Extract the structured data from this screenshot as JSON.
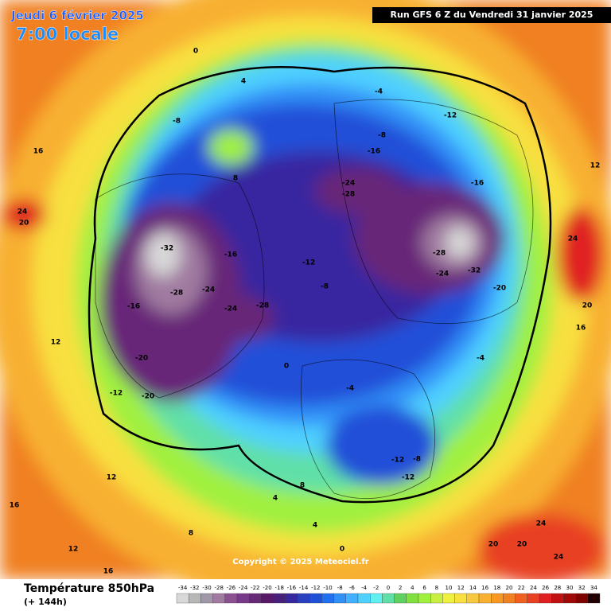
{
  "header": {
    "date": "Jeudi 6 février 2025",
    "time": "7:00 locale",
    "run": "Run GFS 6 Z du Vendredi 31 janvier 2025"
  },
  "copyright": "Copyright © 2025 Meteociel.fr",
  "footer": {
    "title": "Température 850hPa",
    "lead": "(+ 144h)"
  },
  "scale": {
    "labels": [
      "-34",
      "-32",
      "-30",
      "-28",
      "-26",
      "-24",
      "-22",
      "-20",
      "-18",
      "-16",
      "-14",
      "-12",
      "-10",
      "-8",
      "-6",
      "-4",
      "-2",
      "0",
      "2",
      "4",
      "6",
      "8",
      "10",
      "12",
      "14",
      "16",
      "18",
      "20",
      "22",
      "24",
      "26",
      "28",
      "30",
      "32",
      "34"
    ],
    "colors": [
      "#d8d8d8",
      "#b8b8b8",
      "#a098a8",
      "#a07aa0",
      "#8a5090",
      "#783a88",
      "#682878",
      "#581868",
      "#48207a",
      "#3828a0",
      "#2840c0",
      "#2050d8",
      "#2070f0",
      "#3090f8",
      "#40b0ff",
      "#50d0ff",
      "#60f0f0",
      "#60e0a8",
      "#60d060",
      "#80e040",
      "#a0f040",
      "#c8f040",
      "#f0f040",
      "#f8e040",
      "#f8c840",
      "#f8b030",
      "#f89820",
      "#f08020",
      "#f06020",
      "#e84020",
      "#e02020",
      "#c01010",
      "#a00808",
      "#800000",
      "#200000"
    ]
  },
  "map_labels": [
    "-32",
    "-28",
    "-24",
    "-20",
    "-16",
    "-12",
    "-20",
    "-16",
    "-28",
    "-24",
    "-28",
    "-24",
    "-16",
    "-28",
    "-32",
    "-24",
    "-20",
    "-16",
    "-12",
    "-8",
    "-12",
    "-8",
    "-4",
    "-8",
    "-4",
    "0",
    "4",
    "8",
    "12",
    "16",
    "20",
    "24",
    "24",
    "20",
    "12",
    "16",
    "8",
    "4",
    "0",
    "-4",
    "-12",
    "-12",
    "-8",
    "0",
    "4",
    "8",
    "12",
    "16",
    "20",
    "24",
    "12",
    "16",
    "20",
    "24"
  ]
}
